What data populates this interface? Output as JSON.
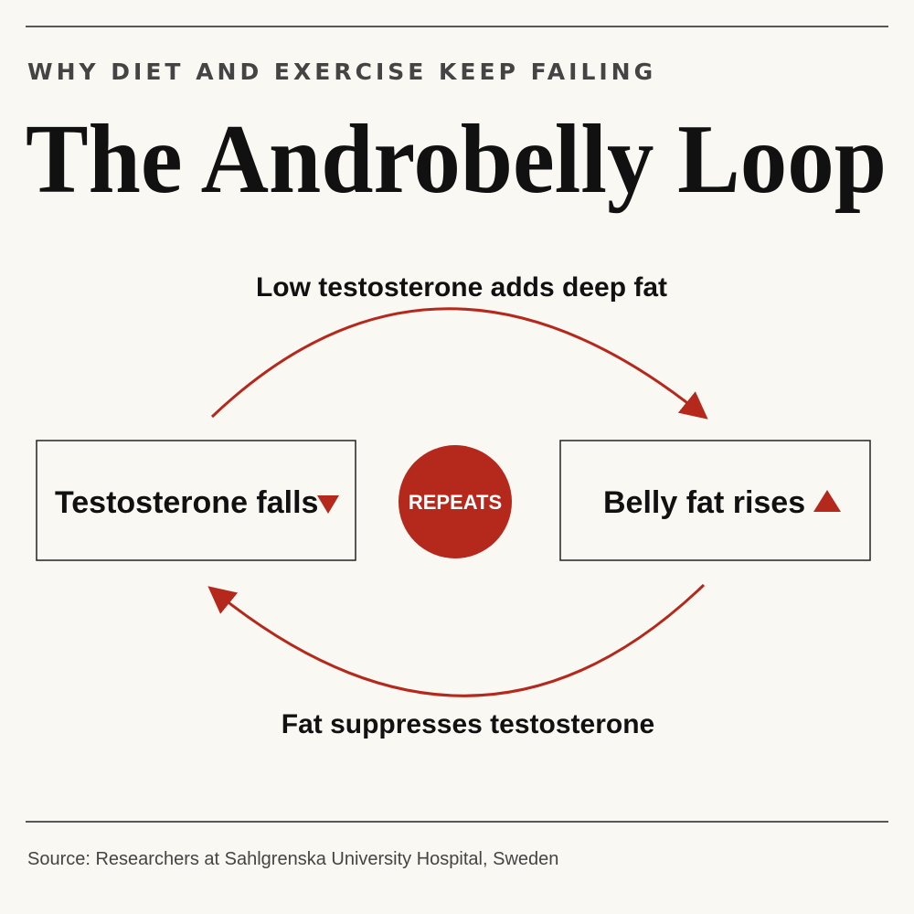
{
  "header": {
    "kicker": "WHY DIET AND EXERCISE KEEP FAILING",
    "title": "The Androbelly Loop"
  },
  "edges": [
    {
      "label": "Low testosterone adds deep fat"
    },
    {
      "label": "Fat suppresses testosterone"
    }
  ],
  "nodes": [
    {
      "label": "Testosterone falls"
    },
    {
      "label": "REPEATS"
    },
    {
      "label": "Belly fat rises"
    }
  ],
  "footer": {
    "source": "Source: Researchers at Sahlgrenska University Hospital, Sweden"
  }
}
